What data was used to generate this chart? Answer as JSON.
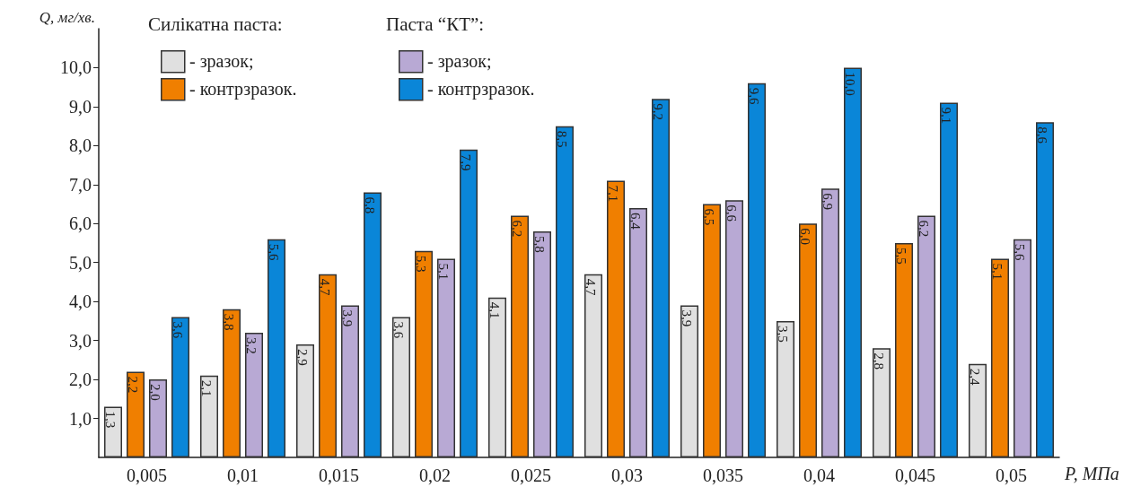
{
  "chart_data": {
    "type": "bar",
    "ylabel": "Q, мг/хв.",
    "xlabel": "P, МПа",
    "annotations": [
      "Силікатна паста:",
      "Паста “КТ”:"
    ],
    "categories": [
      "0,005",
      "0,01",
      "0,015",
      "0,02",
      "0,025",
      "0,03",
      "0,035",
      "0,04",
      "0,045",
      "0,05"
    ],
    "series": [
      {
        "name": "- зразок;",
        "color": "#e0e0e0",
        "values": [
          1.3,
          2.1,
          2.9,
          3.6,
          4.1,
          4.7,
          3.9,
          3.5,
          2.8,
          2.4
        ],
        "value_labels": [
          "1,3",
          "2,1",
          "2,9",
          "3,6",
          "4,1",
          "4,7",
          "3,9",
          "3,5",
          "2,8",
          "2,4"
        ]
      },
      {
        "name": "- контрзразок.",
        "color": "#f07f00",
        "values": [
          2.2,
          3.8,
          4.7,
          5.3,
          6.2,
          7.1,
          6.5,
          6.0,
          5.5,
          5.1
        ],
        "value_labels": [
          "2,2",
          "3,8",
          "4,7",
          "5,3",
          "6,2",
          "7,1",
          "6,5",
          "6,0",
          "5,5",
          "5,1"
        ]
      },
      {
        "name": "- зразок;",
        "color": "#b8a9d4",
        "values": [
          2.0,
          3.2,
          3.9,
          5.1,
          5.8,
          6.4,
          6.6,
          6.9,
          6.2,
          5.6
        ],
        "value_labels": [
          "2,0",
          "3,2",
          "3,9",
          "5,1",
          "5,8",
          "6,4",
          "6,6",
          "6,9",
          "6,2",
          "5,6"
        ]
      },
      {
        "name": "- контрзразок.",
        "color": "#0a86d8",
        "values": [
          3.6,
          5.6,
          6.8,
          7.9,
          8.5,
          9.2,
          9.6,
          10.0,
          9.1,
          8.6
        ],
        "value_labels": [
          "3,6",
          "5,6",
          "6,8",
          "7,9",
          "8,5",
          "9,2",
          "9,6",
          "10,0",
          "9,1",
          "8,6"
        ]
      }
    ],
    "ylim": [
      0,
      11
    ],
    "yticks": [
      {
        "value": 1,
        "label": "1,0"
      },
      {
        "value": 2,
        "label": "2,0"
      },
      {
        "value": 3,
        "label": "3,0"
      },
      {
        "value": 4,
        "label": "4,0"
      },
      {
        "value": 5,
        "label": "5,0"
      },
      {
        "value": 6,
        "label": "6,0"
      },
      {
        "value": 7,
        "label": "7,0"
      },
      {
        "value": 8,
        "label": "8,0"
      },
      {
        "value": 9,
        "label": "9,0"
      },
      {
        "value": 10,
        "label": "10,0"
      }
    ],
    "grid": false,
    "legend": "top left"
  }
}
